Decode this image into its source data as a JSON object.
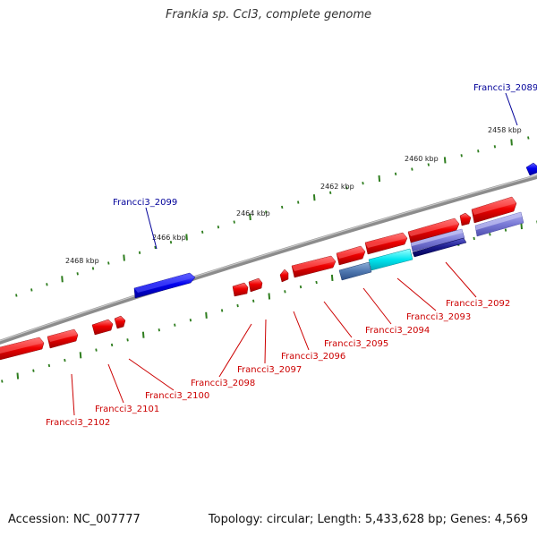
{
  "title": "Frankia sp. CcI3, complete genome",
  "footer": {
    "accession": "Accession: NC_007777",
    "summary": "Topology: circular; Length: 5,433,628 bp; Genes: 4,569"
  },
  "colors": {
    "backbone": "#8a8a8a",
    "forward_gene": "#ee0000",
    "reverse_gene": "#ee0000",
    "highlight_blue": "#0000ee",
    "ruler_tick": "#2e7d1e",
    "label_red": "#cc0000",
    "label_blue": "#000099"
  },
  "ruler_labels": [
    {
      "text": "2458 kbp"
    },
    {
      "text": "2460 kbp"
    },
    {
      "text": "2462 kbp"
    },
    {
      "text": "2464 kbp"
    },
    {
      "text": "2466 kbp"
    },
    {
      "text": "2468 kbp"
    }
  ],
  "gene_labels": [
    {
      "text": "Francci3_2089",
      "color": "blue"
    },
    {
      "text": "Francci3_2099",
      "color": "blue"
    },
    {
      "text": "Francci3_2092",
      "color": "red"
    },
    {
      "text": "Francci3_2093",
      "color": "red"
    },
    {
      "text": "Francci3_2094",
      "color": "red"
    },
    {
      "text": "Francci3_2095",
      "color": "red"
    },
    {
      "text": "Francci3_2096",
      "color": "red"
    },
    {
      "text": "Francci3_2097",
      "color": "red"
    },
    {
      "text": "Francci3_2098",
      "color": "red"
    },
    {
      "text": "Francci3_2100",
      "color": "red"
    },
    {
      "text": "Francci3_2101",
      "color": "red"
    },
    {
      "text": "Francci3_2102",
      "color": "red"
    }
  ]
}
